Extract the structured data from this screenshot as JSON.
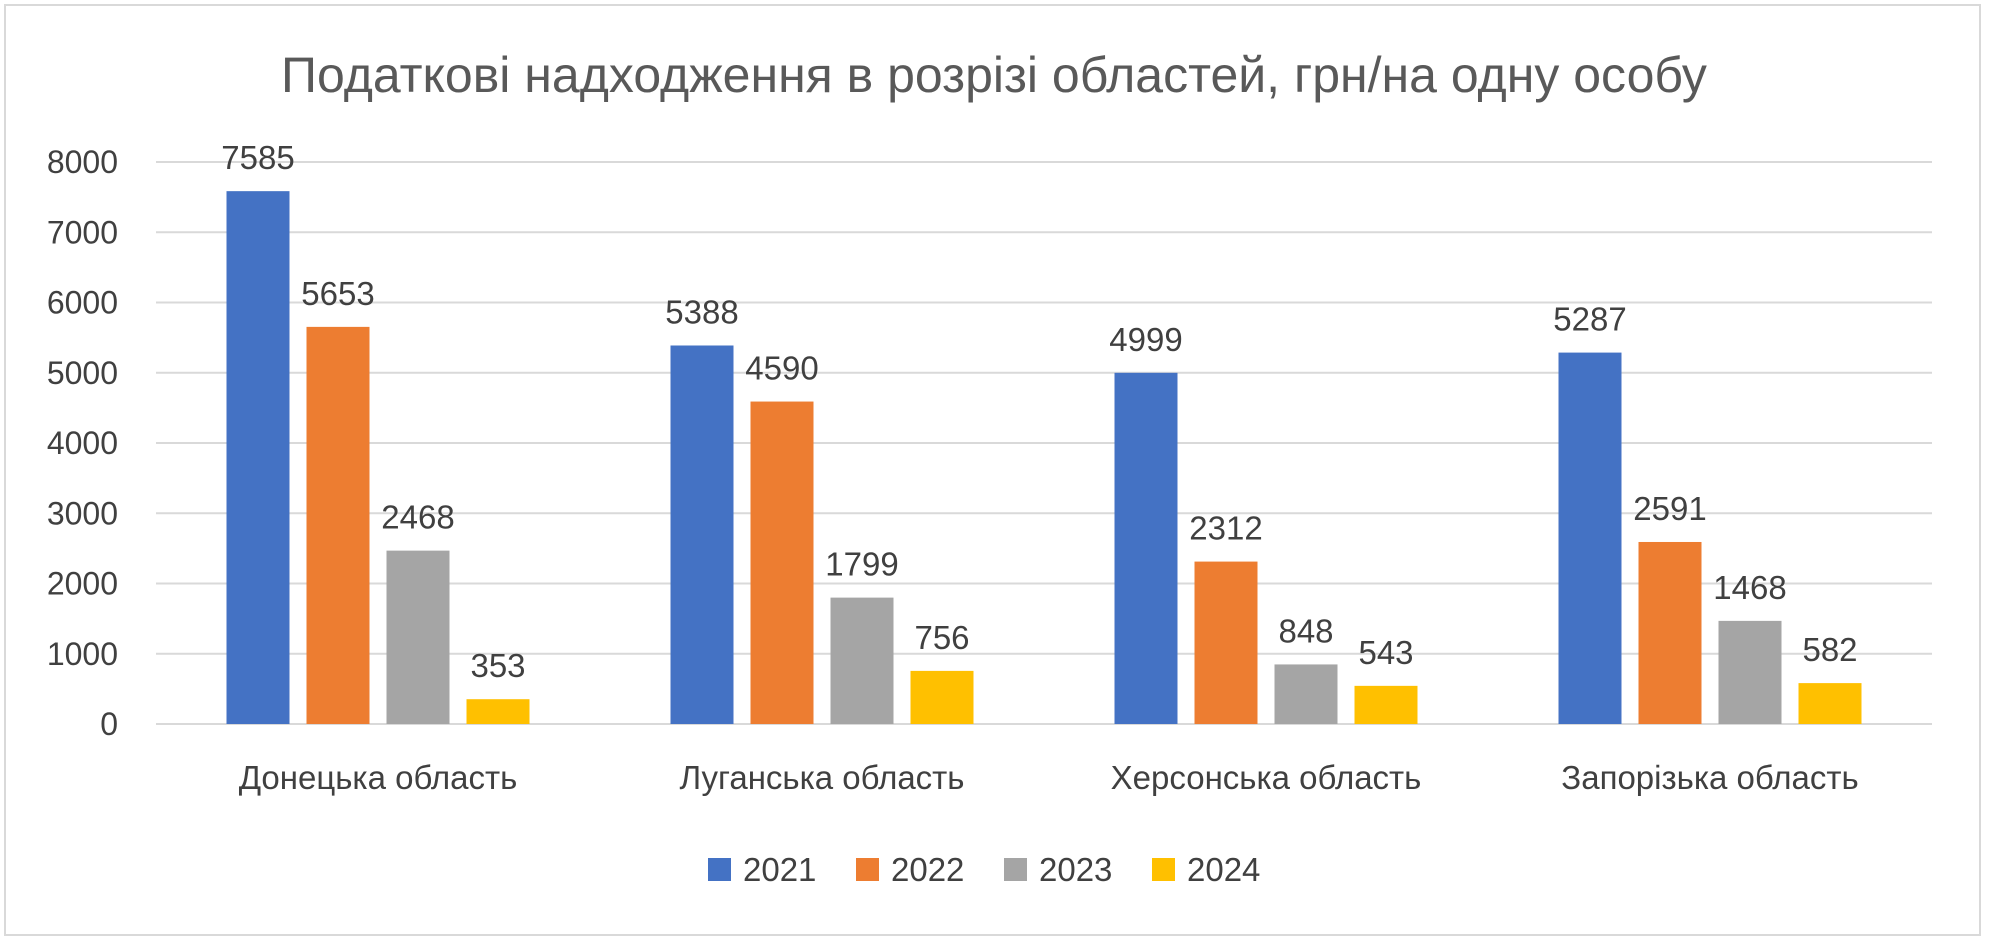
{
  "chart_data": {
    "type": "bar",
    "title": "Податкові надходження в розрізі областей, грн/на одну особу",
    "xlabel": "",
    "ylabel": "",
    "ylim": [
      0,
      8000
    ],
    "y_ticks": [
      "0",
      "1000",
      "2000",
      "3000",
      "4000",
      "5000",
      "6000",
      "7000",
      "8000"
    ],
    "categories": [
      "Донецька область",
      "Луганська область",
      "Херсонська область",
      "Запорізька область"
    ],
    "series": [
      {
        "name": "2021",
        "color": "#4472C4",
        "values": [
          7585,
          5388,
          4999,
          5287
        ]
      },
      {
        "name": "2022",
        "color": "#ED7D31",
        "values": [
          5653,
          4590,
          2312,
          2591
        ]
      },
      {
        "name": "2023",
        "color": "#A5A5A5",
        "values": [
          2468,
          1799,
          848,
          1468
        ]
      },
      {
        "name": "2024",
        "color": "#FFC000",
        "values": [
          353,
          756,
          543,
          582
        ]
      }
    ],
    "grid": true,
    "legend_position": "bottom",
    "data_labels": true
  }
}
